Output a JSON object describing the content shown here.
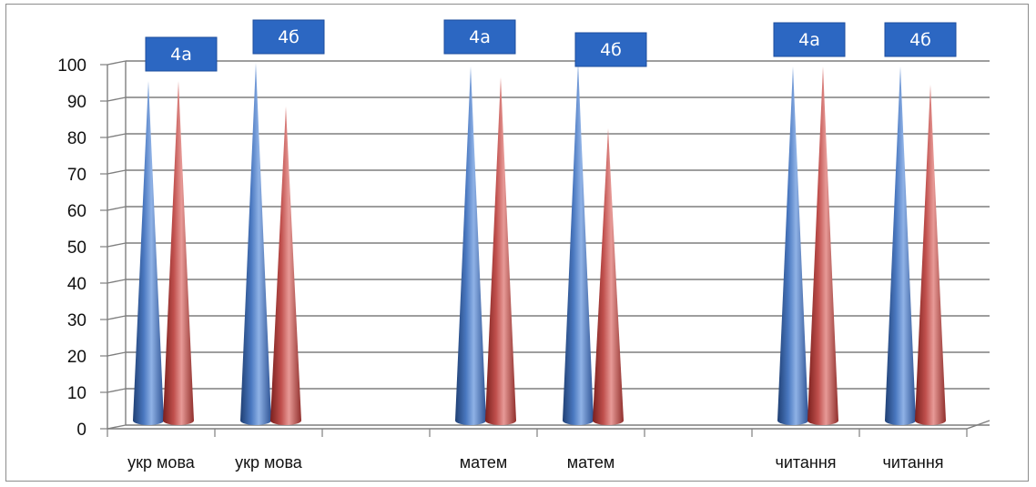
{
  "chart_data": {
    "type": "bar",
    "style": "3d-cone",
    "title": "",
    "xlabel": "",
    "ylabel": "",
    "ylim": [
      0,
      100
    ],
    "y_ticks": [
      "0",
      "10",
      "20",
      "30",
      "40",
      "50",
      "60",
      "70",
      "80",
      "90",
      "100"
    ],
    "grid": true,
    "categories": [
      "укр мова",
      "укр мова",
      "",
      "матем",
      "матем",
      "",
      "читання",
      "читання"
    ],
    "series": [
      {
        "values": [
          95,
          100,
          null,
          99,
          100,
          null,
          99,
          99
        ]
      },
      {
        "values": [
          95,
          88,
          null,
          96,
          82,
          null,
          99,
          94
        ]
      }
    ],
    "colors": [
      "#4f81bd",
      "#c0504d"
    ],
    "annotations": [
      "4а",
      "4б",
      "4а",
      "4б",
      "4а",
      "4б"
    ]
  }
}
